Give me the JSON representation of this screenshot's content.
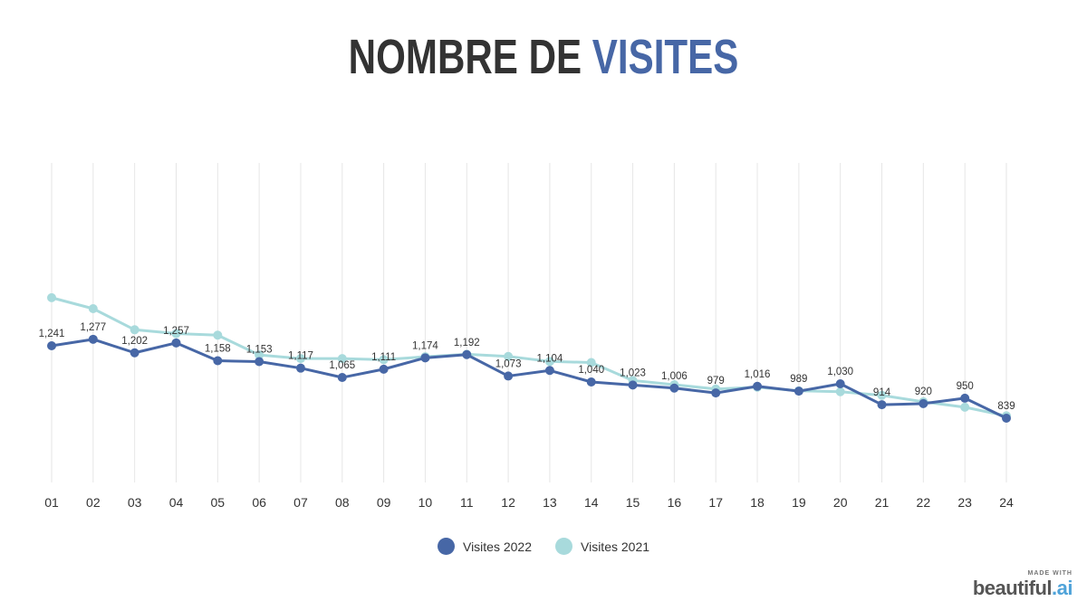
{
  "title": {
    "main": "NOMBRE DE",
    "accent": "VISITES"
  },
  "chart_data": {
    "type": "line",
    "title": "NOMBRE DE VISITES",
    "categories": [
      "01",
      "02",
      "03",
      "04",
      "05",
      "06",
      "07",
      "08",
      "09",
      "10",
      "11",
      "12",
      "13",
      "14",
      "15",
      "16",
      "17",
      "18",
      "19",
      "20",
      "21",
      "22",
      "23",
      "24"
    ],
    "ylim": [
      800,
      1550
    ],
    "grid": "vertical",
    "legend": "bottom-center",
    "series": [
      {
        "name": "Visites 2022",
        "color": "#4767a6",
        "values": [
          1241,
          1277,
          1202,
          1257,
          1158,
          1153,
          1117,
          1065,
          1111,
          1174,
          1192,
          1073,
          1104,
          1040,
          1023,
          1006,
          979,
          1016,
          989,
          1030,
          914,
          920,
          950,
          839
        ],
        "labels": [
          "1,241",
          "1,277",
          "1,202",
          "1,257",
          "1,158",
          "1,153",
          "1,117",
          "1,065",
          "1,111",
          "1,174",
          "1,192",
          "1,073",
          "1,104",
          "1,040",
          "1,023",
          "1,006",
          "979",
          "1,016",
          "989",
          "1,030",
          "914",
          "920",
          "950",
          "839"
        ]
      },
      {
        "name": "Visites 2021",
        "color": "#a8dadc",
        "values": [
          1508,
          1447,
          1330,
          1309,
          1300,
          1190,
          1170,
          1170,
          1164,
          1180,
          1194,
          1182,
          1154,
          1148,
          1048,
          1025,
          1001,
          1011,
          991,
          986,
          966,
          930,
          900,
          852
        ]
      }
    ]
  },
  "legend": [
    {
      "label": "Visites 2022",
      "color": "#4767a6"
    },
    {
      "label": "Visites 2021",
      "color": "#a8dadc"
    }
  ],
  "brand": {
    "made_with": "MADE WITH",
    "name": "beautiful",
    "suffix": ".ai"
  }
}
